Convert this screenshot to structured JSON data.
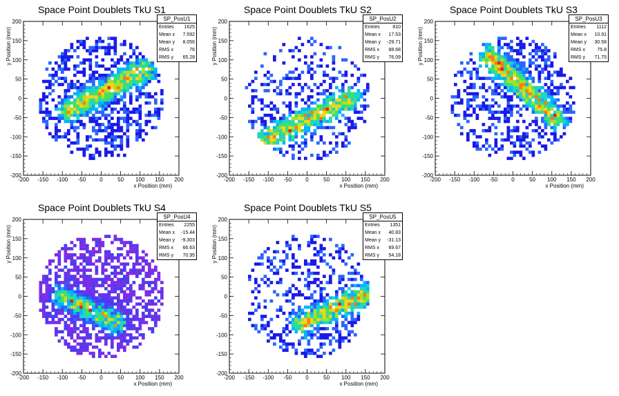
{
  "chart_data": [
    {
      "type": "heatmap",
      "title": "Space Point Doublets TkU S1",
      "xlabel": "x Position (mm)",
      "ylabel": "y Position (mm)",
      "xlim": [
        -200,
        200
      ],
      "ylim": [
        -200,
        200
      ],
      "xticks": [
        "-200",
        "-150",
        "-100",
        "-50",
        "0",
        "50",
        "100",
        "150",
        "200"
      ],
      "yticks": [
        "-200",
        "-150",
        "-100",
        "-50",
        "0",
        "50",
        "100",
        "150",
        "200"
      ],
      "stats": {
        "name": "SP_PosU1",
        "rows": [
          [
            "Entries",
            "1625"
          ],
          [
            "Mean x",
            "7.592"
          ],
          [
            "Mean y",
            "8.056"
          ],
          [
            "RMS x",
            "76"
          ],
          [
            "RMS y",
            "65.28"
          ]
        ]
      },
      "band": {
        "x0": -80,
        "y0": -30,
        "x1": 110,
        "y1": 75
      },
      "mean_x": 7.592,
      "mean_y": 8.056,
      "density": 0.55,
      "seed": 11,
      "palette": "jet"
    },
    {
      "type": "heatmap",
      "title": "Space Point Doublets TkU S2",
      "xlabel": "x Position (mm)",
      "ylabel": "y Position (mm)",
      "xlim": [
        -200,
        200
      ],
      "ylim": [
        -200,
        200
      ],
      "xticks": [
        "-200",
        "-150",
        "-100",
        "-50",
        "0",
        "50",
        "100",
        "150",
        "200"
      ],
      "yticks": [
        "-200",
        "-150",
        "-100",
        "-50",
        "0",
        "50",
        "100",
        "150",
        "200"
      ],
      "stats": {
        "name": "SP_PosU2",
        "rows": [
          [
            "Entries",
            "810"
          ],
          [
            "Mean x",
            "17.53"
          ],
          [
            "Mean y",
            "-29.71"
          ],
          [
            "RMS x",
            "88.68"
          ],
          [
            "RMS y",
            "76.09"
          ]
        ]
      },
      "band": {
        "x0": -110,
        "y0": -110,
        "x1": 110,
        "y1": 0
      },
      "mean_x": 17.53,
      "mean_y": -29.71,
      "density": 0.32,
      "seed": 23,
      "palette": "jet"
    },
    {
      "type": "heatmap",
      "title": "Space Point Doublets TkU S3",
      "xlabel": "x Position (mm)",
      "ylabel": "y Position (mm)",
      "xlim": [
        -200,
        200
      ],
      "ylim": [
        -200,
        200
      ],
      "xticks": [
        "-200",
        "-150",
        "-100",
        "-50",
        "0",
        "50",
        "100",
        "150",
        "200"
      ],
      "yticks": [
        "-200",
        "-150",
        "-100",
        "-50",
        "0",
        "50",
        "100",
        "150",
        "200"
      ],
      "stats": {
        "name": "SP_PosU3",
        "rows": [
          [
            "Entries",
            "1112"
          ],
          [
            "Mean x",
            "10.91"
          ],
          [
            "Mean y",
            "30.58"
          ],
          [
            "RMS x",
            "75.8"
          ],
          [
            "RMS y",
            "71.75"
          ]
        ]
      },
      "band": {
        "x0": -60,
        "y0": 110,
        "x1": 110,
        "y1": -50
      },
      "mean_x": 10.91,
      "mean_y": 30.58,
      "density": 0.45,
      "seed": 37,
      "palette": "jet"
    },
    {
      "type": "heatmap",
      "title": "Space Point Doublets TkU S4",
      "xlabel": "x Position (mm)",
      "ylabel": "y Position (mm)",
      "xlim": [
        -200,
        200
      ],
      "ylim": [
        -200,
        200
      ],
      "xticks": [
        "-200",
        "-150",
        "-100",
        "-50",
        "0",
        "50",
        "100",
        "150",
        "200"
      ],
      "yticks": [
        "-200",
        "-150",
        "-100",
        "-50",
        "0",
        "50",
        "100",
        "150",
        "200"
      ],
      "stats": {
        "name": "SP_PosU4",
        "rows": [
          [
            "Entries",
            "2255"
          ],
          [
            "Mean x",
            "-15.44"
          ],
          [
            "Mean y",
            "-9.303"
          ],
          [
            "RMS x",
            "66.63"
          ],
          [
            "RMS y",
            "70.95"
          ]
        ]
      },
      "band": {
        "x0": -100,
        "y0": 0,
        "x1": 40,
        "y1": -70
      },
      "mean_x": -15.44,
      "mean_y": -9.303,
      "density": 0.68,
      "seed": 53,
      "palette": "violet"
    },
    {
      "type": "heatmap",
      "title": "Space Point Doublets TkU S5",
      "xlabel": "x Position (mm)",
      "ylabel": "y Position (mm)",
      "xlim": [
        -200,
        200
      ],
      "ylim": [
        -200,
        200
      ],
      "xticks": [
        "-200",
        "-150",
        "-100",
        "-50",
        "0",
        "50",
        "100",
        "150",
        "200"
      ],
      "yticks": [
        "-200",
        "-150",
        "-100",
        "-50",
        "0",
        "50",
        "100",
        "150",
        "200"
      ],
      "stats": {
        "name": "SP_PosU5",
        "rows": [
          [
            "Entries",
            "1351"
          ],
          [
            "Mean x",
            "40.83"
          ],
          [
            "Mean y",
            "-31.13"
          ],
          [
            "RMS x",
            "69.67"
          ],
          [
            "RMS y",
            "54.18"
          ]
        ]
      },
      "band": {
        "x0": -10,
        "y0": -70,
        "x1": 160,
        "y1": 10
      },
      "mean_x": 40.83,
      "mean_y": -31.13,
      "density": 0.4,
      "seed": 71,
      "palette": "jet"
    }
  ]
}
